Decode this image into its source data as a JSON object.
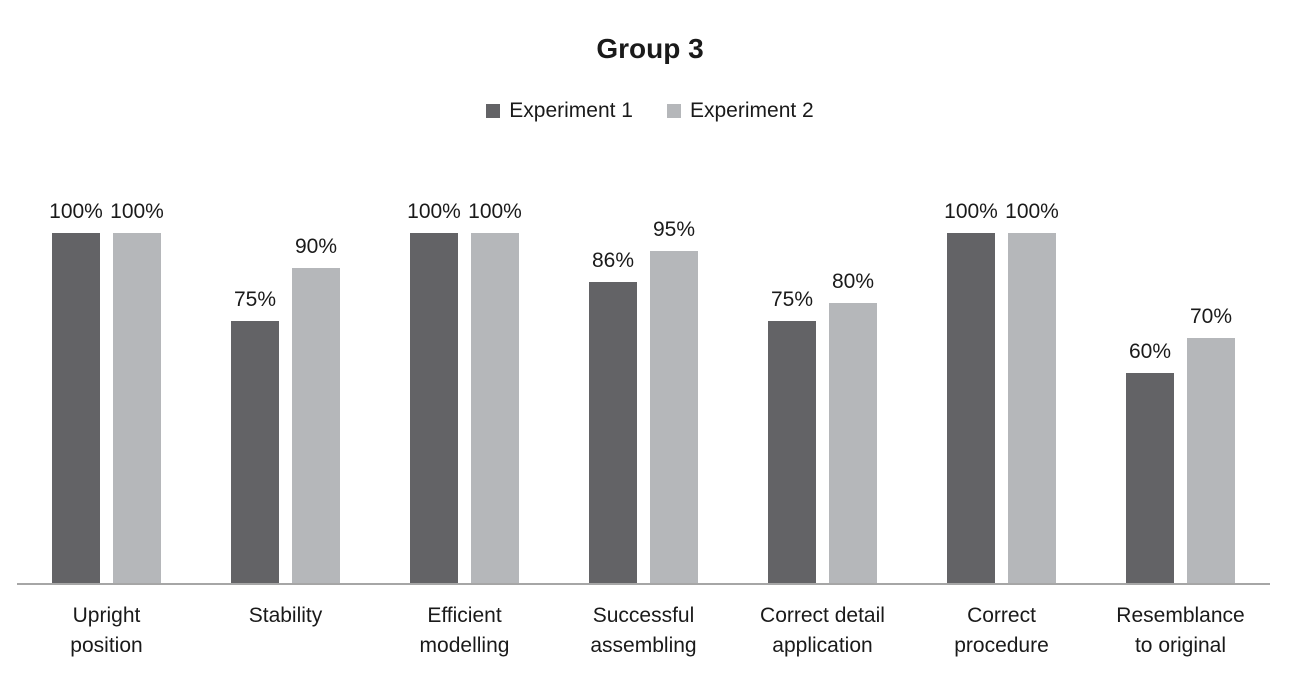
{
  "chart_data": {
    "type": "bar",
    "title": "Group 3",
    "categories": [
      "Upright\nposition",
      "Stability",
      "Efficient\nmodelling",
      "Successful\nassembling",
      "Correct detail\napplication",
      "Correct\nprocedure",
      "Resemblance\nto original"
    ],
    "series": [
      {
        "name": "Experiment 1",
        "color": "#636366",
        "values": [
          100,
          75,
          100,
          86,
          75,
          100,
          60
        ],
        "labels": [
          "100%",
          "75%",
          "100%",
          "86%",
          "75%",
          "100%",
          "60%"
        ]
      },
      {
        "name": "Experiment 2",
        "color": "#b5b7ba",
        "values": [
          100,
          90,
          100,
          95,
          80,
          100,
          70
        ],
        "labels": [
          "100%",
          "90%",
          "100%",
          "95%",
          "80%",
          "100%",
          "70%"
        ]
      }
    ],
    "ylim": [
      0,
      100
    ],
    "grid": false,
    "legend_position": "top",
    "axis_color": "#a6a6a6",
    "background_color": "#ffffff",
    "value_label_format": "percent"
  }
}
